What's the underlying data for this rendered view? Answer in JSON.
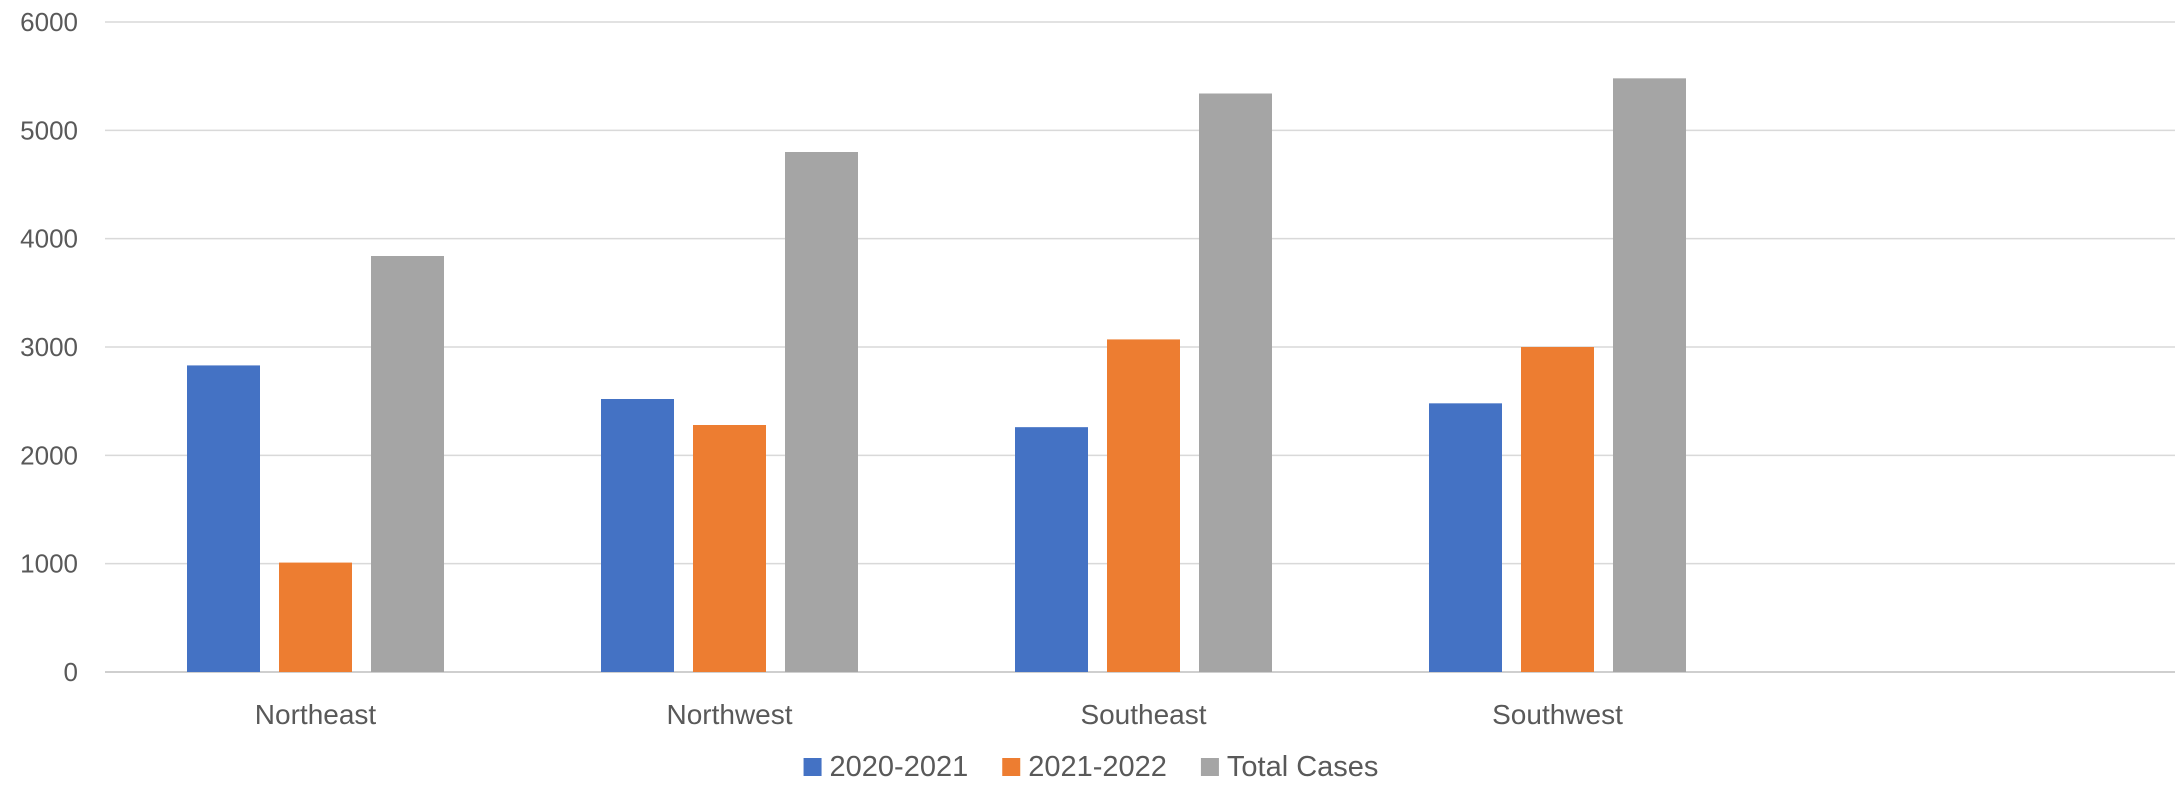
{
  "chart_data": {
    "type": "bar",
    "categories": [
      "Northeast",
      "Northwest",
      "Southeast",
      "Southwest"
    ],
    "series": [
      {
        "name": "2020-2021",
        "color": "#4472C4",
        "values": [
          2830,
          2520,
          2260,
          2480
        ]
      },
      {
        "name": "2021-2022",
        "color": "#ED7D31",
        "values": [
          1010,
          2280,
          3070,
          3000
        ]
      },
      {
        "name": "Total Cases",
        "color": "#A5A5A5",
        "values": [
          3840,
          4800,
          5340,
          5480
        ]
      }
    ],
    "ylim": [
      0,
      6000
    ],
    "yticks": [
      "0",
      "1000",
      "2000",
      "3000",
      "4000",
      "5000",
      "6000"
    ],
    "grid": true,
    "legend": "bottom",
    "title": "",
    "xlabel": "",
    "ylabel": ""
  }
}
